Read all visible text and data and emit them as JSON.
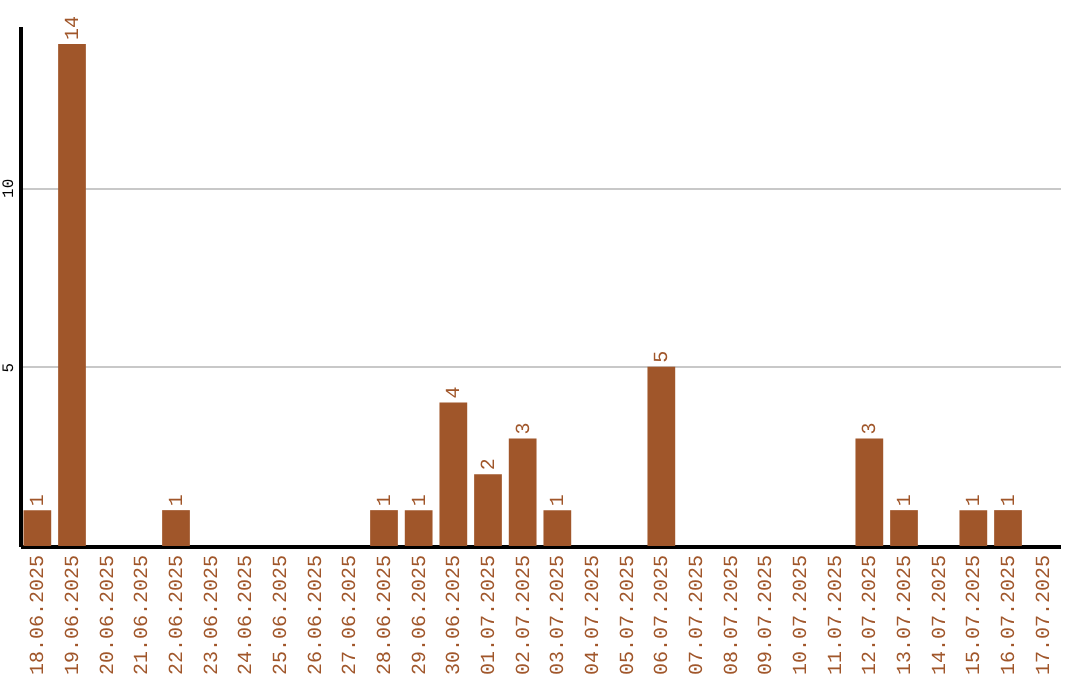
{
  "chart_data": {
    "type": "bar",
    "categories": [
      "18.06.2025",
      "19.06.2025",
      "20.06.2025",
      "21.06.2025",
      "22.06.2025",
      "23.06.2025",
      "24.06.2025",
      "25.06.2025",
      "26.06.2025",
      "27.06.2025",
      "28.06.2025",
      "29.06.2025",
      "30.06.2025",
      "01.07.2025",
      "02.07.2025",
      "03.07.2025",
      "04.07.2025",
      "05.07.2025",
      "06.07.2025",
      "07.07.2025",
      "08.07.2025",
      "09.07.2025",
      "10.07.2025",
      "11.07.2025",
      "12.07.2025",
      "13.07.2025",
      "14.07.2025",
      "15.07.2025",
      "16.07.2025",
      "17.07.2025"
    ],
    "values": [
      1,
      14,
      0,
      0,
      1,
      0,
      0,
      0,
      0,
      0,
      1,
      1,
      4,
      2,
      3,
      1,
      0,
      0,
      5,
      0,
      0,
      0,
      0,
      0,
      3,
      1,
      0,
      1,
      1,
      0
    ],
    "value_labels": [
      "1",
      "14",
      null,
      null,
      "1",
      null,
      null,
      null,
      null,
      null,
      "1",
      "1",
      "4",
      "2",
      "3",
      "1",
      null,
      null,
      "5",
      null,
      null,
      null,
      null,
      null,
      "3",
      "1",
      null,
      "1",
      "1",
      null
    ],
    "color": "#a0562a",
    "ylim": [
      0,
      14.5
    ],
    "yticks": [
      5,
      10
    ],
    "grid": "y"
  }
}
